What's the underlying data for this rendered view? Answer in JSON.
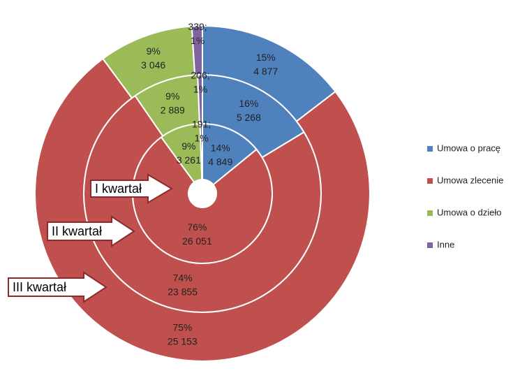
{
  "chart_data": {
    "type": "doughnut",
    "categories": [
      "Umowa o pracę",
      "Umowa zlecenie",
      "Umowa o dzieło",
      "Inne"
    ],
    "colors": [
      "#4f81bd",
      "#c0504d",
      "#9bbb59",
      "#8064a2"
    ],
    "series": [
      {
        "name": "I kwartał",
        "values": [
          4849,
          26051,
          3261,
          191
        ],
        "value_labels": [
          "4 849",
          "26 051",
          "3 261",
          "191;"
        ],
        "percent_labels": [
          "14%",
          "76%",
          "9%",
          "1%"
        ]
      },
      {
        "name": "II kwartał",
        "values": [
          5268,
          23855,
          2889,
          206
        ],
        "value_labels": [
          "5 268",
          "23 855",
          "2 889",
          "206;"
        ],
        "percent_labels": [
          "16%",
          "74%",
          "9%",
          "1%"
        ]
      },
      {
        "name": "III kwartał",
        "values": [
          4877,
          25153,
          3046,
          339
        ],
        "value_labels": [
          "4 877",
          "25 153",
          "3 046",
          "339;"
        ],
        "percent_labels": [
          "15%",
          "75%",
          "9%",
          "1%"
        ]
      }
    ],
    "legend": "right"
  }
}
